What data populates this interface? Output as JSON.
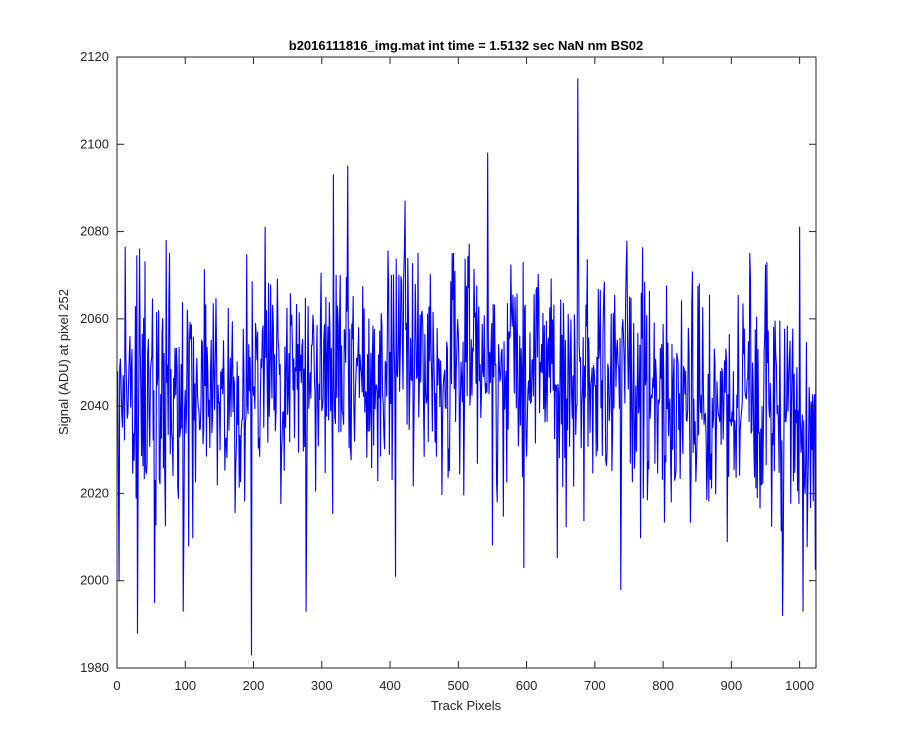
{
  "chart_data": {
    "type": "line",
    "title": "b2016111816_img.mat int time = 1.5132 sec  NaN nm BS02",
    "xlabel": "Track Pixels",
    "ylabel": "Signal (ADU) at pixel 252",
    "xlim": [
      0,
      1024
    ],
    "ylim": [
      1980,
      2120
    ],
    "xticks": [
      0,
      100,
      200,
      300,
      400,
      500,
      600,
      700,
      800,
      900,
      1000
    ],
    "yticks": [
      1980,
      2000,
      2020,
      2040,
      2060,
      2080,
      2100,
      2120
    ],
    "grid": false,
    "legend": "none",
    "series_color": "#0000ff",
    "noise_model": {
      "start_x": 1,
      "end_x": 1024,
      "mean_baseline": 2040,
      "mean_center_rise": 10,
      "mean_center_x": 520,
      "std": 14
    },
    "notable_points": [
      {
        "x": 3,
        "y": 2000
      },
      {
        "x": 30,
        "y": 1988
      },
      {
        "x": 33,
        "y": 2076
      },
      {
        "x": 55,
        "y": 1995
      },
      {
        "x": 77,
        "y": 2075
      },
      {
        "x": 97,
        "y": 1993
      },
      {
        "x": 197,
        "y": 1983
      },
      {
        "x": 217,
        "y": 2081
      },
      {
        "x": 277,
        "y": 1993
      },
      {
        "x": 317,
        "y": 2093
      },
      {
        "x": 338,
        "y": 2095
      },
      {
        "x": 408,
        "y": 2001
      },
      {
        "x": 422,
        "y": 2087
      },
      {
        "x": 543,
        "y": 2098
      },
      {
        "x": 596,
        "y": 2003
      },
      {
        "x": 675,
        "y": 2115
      },
      {
        "x": 738,
        "y": 1998
      },
      {
        "x": 975,
        "y": 1992
      },
      {
        "x": 1000,
        "y": 2081
      },
      {
        "x": 1005,
        "y": 1993
      }
    ]
  }
}
